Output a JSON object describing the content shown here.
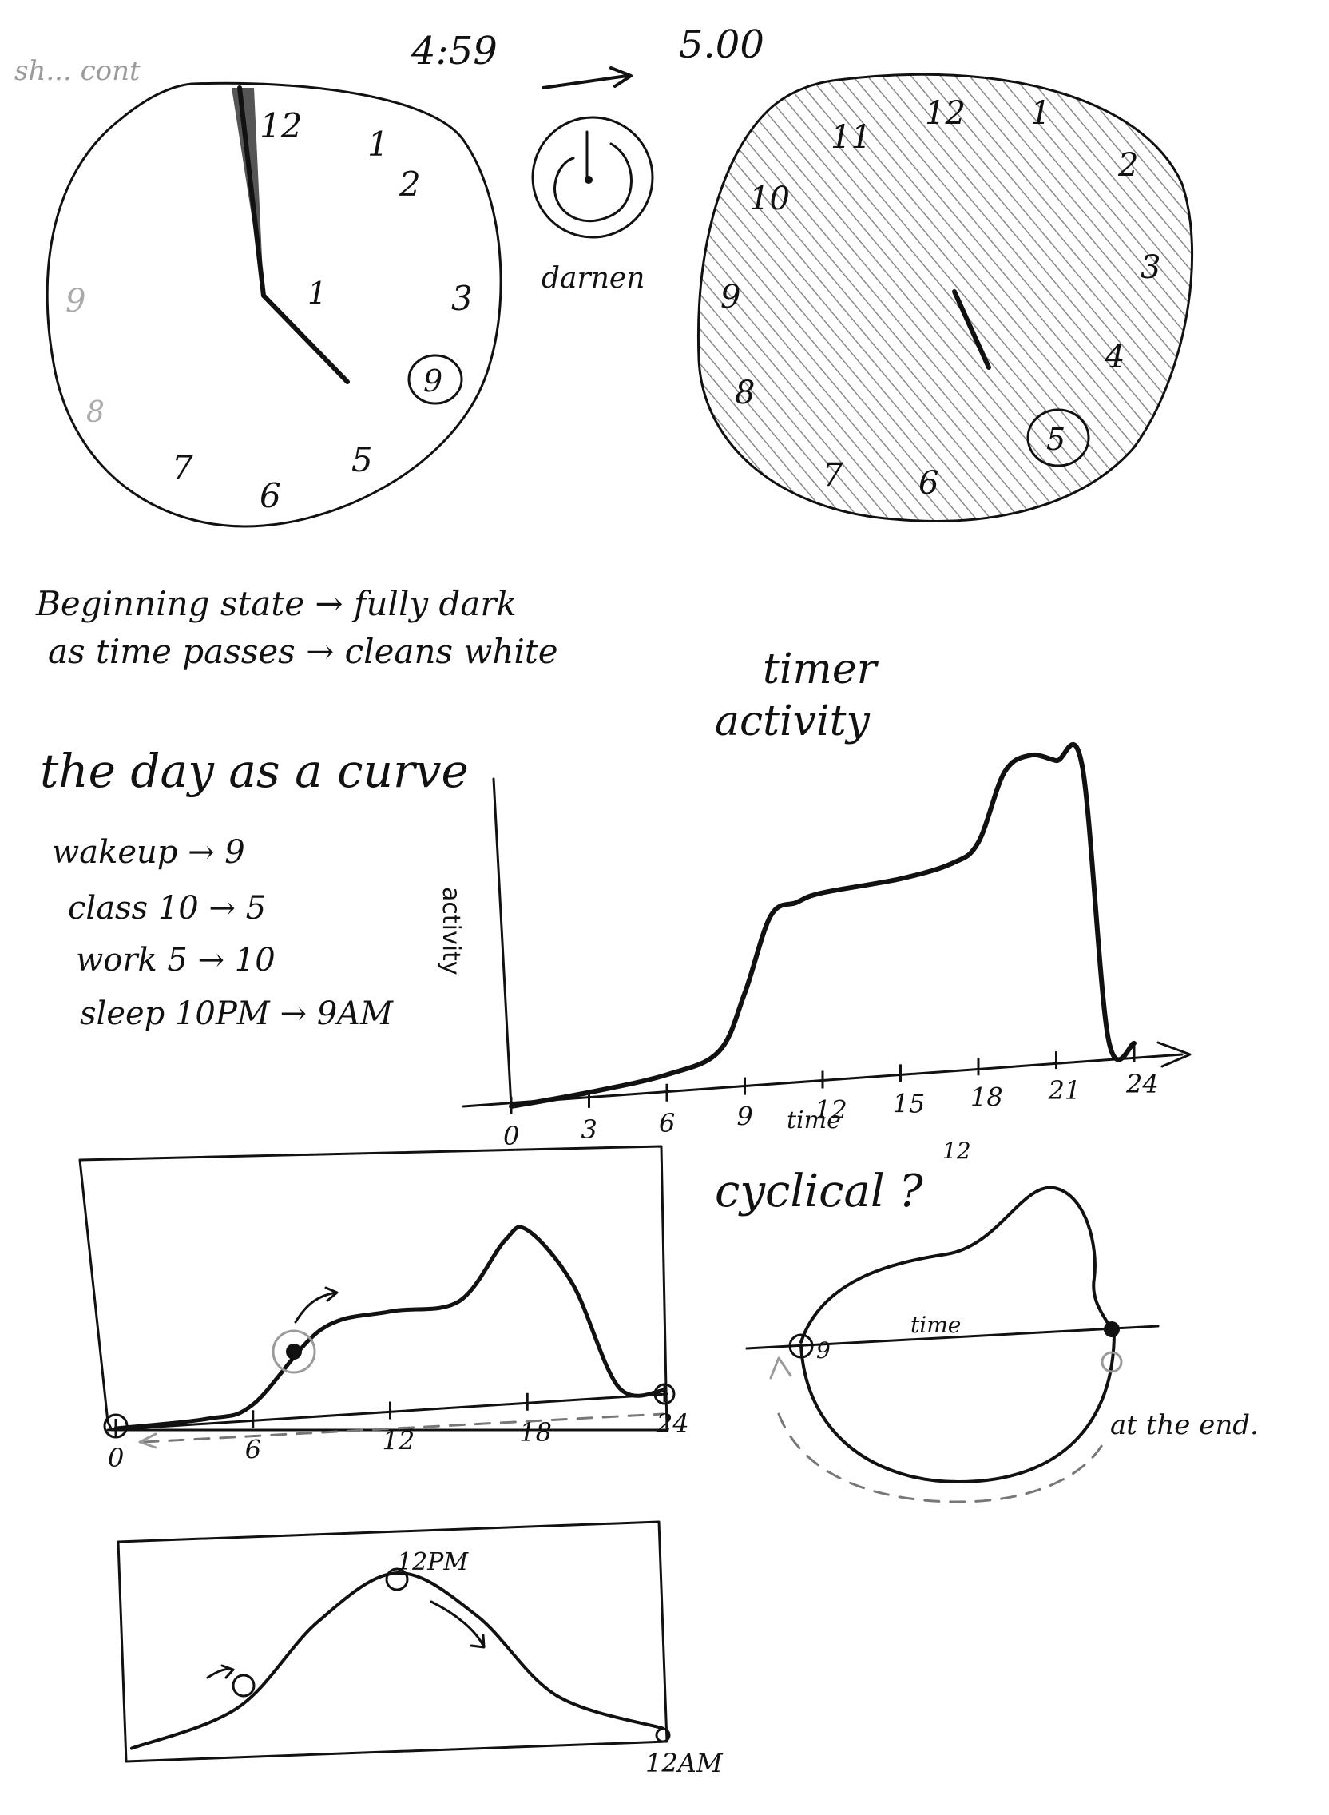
{
  "header": {
    "corner_note": "sh... cont",
    "time_before": "4:59",
    "time_after": "5.00"
  },
  "clock_left": {
    "numbers": [
      "12",
      "1",
      "2",
      "3",
      "9",
      "5",
      "6",
      "7",
      "8",
      "9",
      "1"
    ],
    "circled": "9"
  },
  "icon_caption": "darnen",
  "clock_right": {
    "numbers": [
      "12",
      "1",
      "2",
      "3",
      "4",
      "5",
      "6",
      "7",
      "8",
      "9",
      "10",
      "11"
    ],
    "circled": "5"
  },
  "notes": {
    "line1": "Beginning state → fully dark",
    "line2": "as time passes → cleans white"
  },
  "section_title": {
    "main": "the day as a curve",
    "activity": "activity",
    "timer": "timer"
  },
  "schedule": [
    {
      "label": "wakeup → 9"
    },
    {
      "label": "class  10 → 5"
    },
    {
      "label": "work  5 → 10"
    },
    {
      "label": "sleep  10PM → 9AM"
    }
  ],
  "chart_data": [
    {
      "type": "line",
      "ylabel": "activity",
      "xlabel": "time",
      "x_ticks": [
        "0",
        "3",
        "6",
        "9",
        "12",
        "15",
        "18",
        "21",
        "24"
      ],
      "x": [
        0,
        3,
        6,
        8,
        9,
        10,
        11,
        12,
        15,
        17,
        18,
        19,
        20,
        21,
        22,
        23,
        24
      ],
      "y": [
        0,
        0.02,
        0.05,
        0.1,
        0.25,
        0.45,
        0.48,
        0.5,
        0.52,
        0.55,
        0.6,
        0.78,
        0.82,
        0.8,
        0.78,
        0.05,
        0.03
      ]
    },
    {
      "type": "line",
      "x_ticks": [
        "0",
        "6",
        "12",
        "18",
        "24"
      ],
      "x": [
        0,
        4,
        6,
        9,
        12,
        15,
        17,
        18,
        20,
        22,
        24
      ],
      "y": [
        0,
        0.02,
        0.08,
        0.45,
        0.52,
        0.55,
        0.85,
        0.9,
        0.6,
        0.05,
        0.02
      ]
    },
    {
      "type": "line",
      "title": "cyclical ?",
      "annotations": [
        "12",
        "9",
        "time",
        "at the end."
      ]
    },
    {
      "type": "line",
      "annotations": [
        "12PM",
        "12AM"
      ],
      "x": [
        0,
        0.2,
        0.35,
        0.5,
        0.65,
        0.8,
        1
      ],
      "y": [
        0.05,
        0.25,
        0.7,
        0.95,
        0.7,
        0.25,
        0.05
      ]
    }
  ]
}
